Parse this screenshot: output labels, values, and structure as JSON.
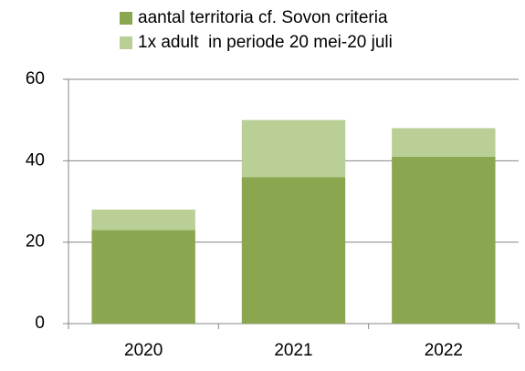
{
  "chart_data": {
    "type": "stacked_bar",
    "categories": [
      "2020",
      "2021",
      "2022"
    ],
    "series": [
      {
        "name": "aantal territoria cf. Sovon criteria",
        "color": "#8aa64e",
        "values": [
          23,
          36,
          41
        ]
      },
      {
        "name": "1x adult  in periode 20 mei-20 juli",
        "color": "#b9cf96",
        "values": [
          5,
          14,
          7
        ]
      }
    ],
    "ylim": [
      0,
      60
    ],
    "yticks": [
      0,
      20,
      40,
      60
    ],
    "grid": true,
    "legend": "top"
  }
}
